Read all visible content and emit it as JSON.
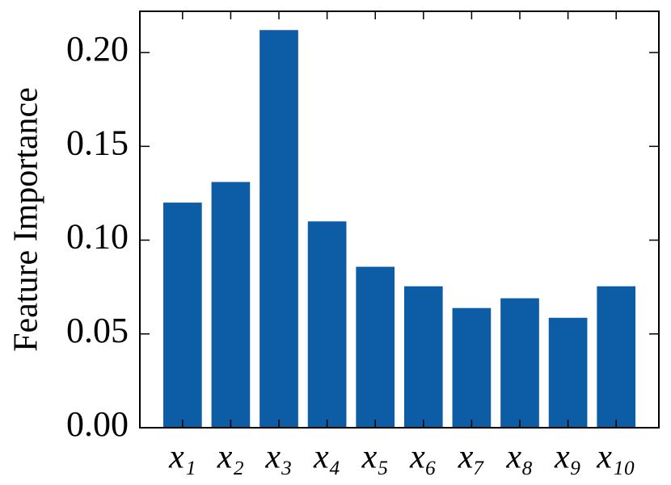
{
  "chart_data": {
    "type": "bar",
    "ylabel": "Feature Importance",
    "categories": [
      "x₁",
      "x₂",
      "x₃",
      "x₄",
      "x₅",
      "x₆",
      "x₇",
      "x₈",
      "x₉",
      "x₁₀"
    ],
    "values": [
      0.12,
      0.131,
      0.212,
      0.11,
      0.0858,
      0.0754,
      0.0638,
      0.069,
      0.0586,
      0.0754
    ],
    "color": "#0c5da5",
    "ylim": [
      0,
      0.222
    ],
    "yticks": [
      {
        "value": 0,
        "label": "0.00"
      },
      {
        "value": 0.05,
        "label": "0.05"
      },
      {
        "value": 0.1,
        "label": "0.10"
      },
      {
        "value": 0.15,
        "label": "0.15"
      },
      {
        "value": 0.2,
        "label": "0.20"
      }
    ],
    "grid": false
  }
}
